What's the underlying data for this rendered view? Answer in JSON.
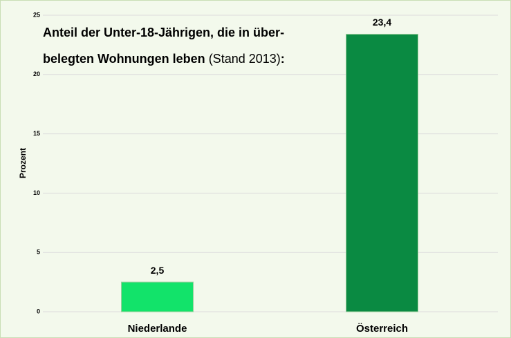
{
  "chart_data": {
    "type": "bar",
    "title_lines": [
      "Anteil der Unter-18-Jährigen, die in über-",
      "belegten Wohnungen leben"
    ],
    "subtitle": "(Stand 2013)",
    "title_suffix": ":",
    "y_label": "Prozent",
    "categories": [
      "Niederlande",
      "Österreich"
    ],
    "values": [
      2.5,
      23.4
    ],
    "value_labels": [
      "2,5",
      "23,4"
    ],
    "colors": [
      "#12e36a",
      "#0a8a42"
    ],
    "ylim": [
      0,
      25
    ],
    "yticks": [
      0,
      5,
      10,
      15,
      20,
      25
    ],
    "grid": true
  }
}
